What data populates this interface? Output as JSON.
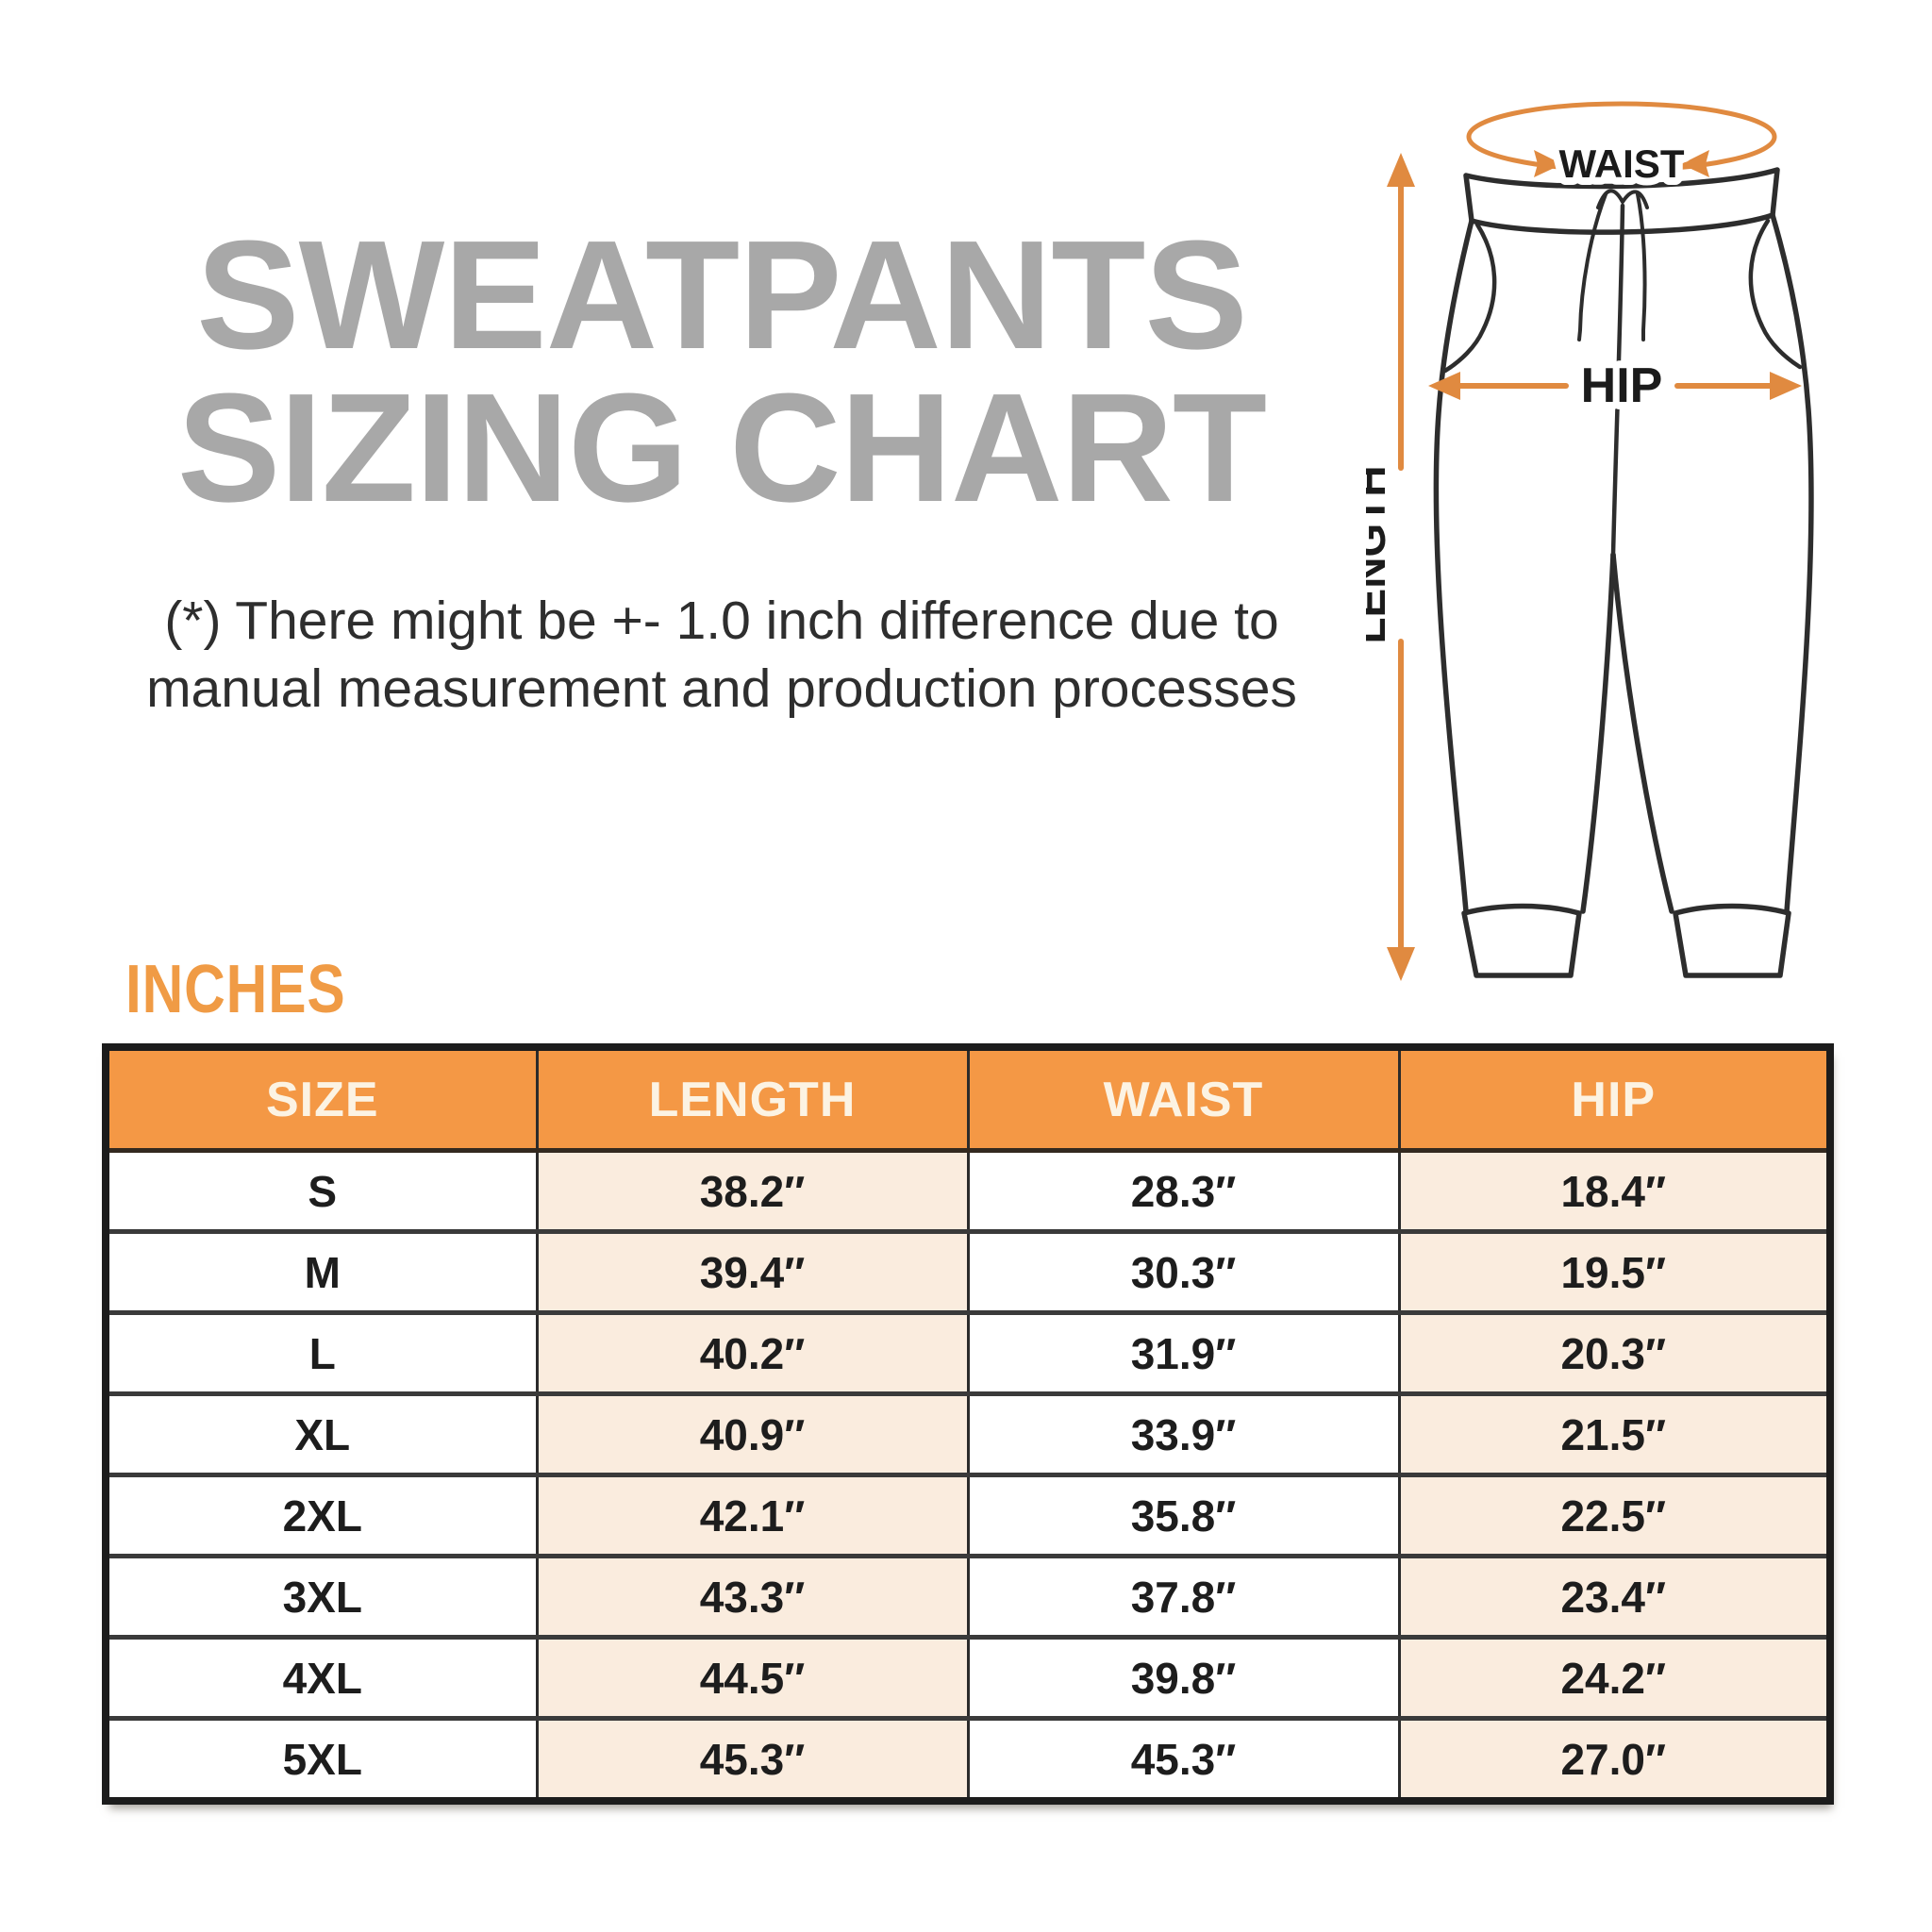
{
  "title": {
    "line1": "SWEATPANTS",
    "line2": "SIZING CHART"
  },
  "disclaimer": {
    "line1": "(*) There might be +- 1.0 inch difference due to",
    "line2": "manual measurement and production processes"
  },
  "units_label": "INCHES",
  "diagram": {
    "waist_label": "WAIST",
    "hip_label": "HIP",
    "length_label": "LENGTH"
  },
  "table": {
    "columns": [
      "SIZE",
      "LENGTH",
      "WAIST",
      "HIP"
    ],
    "rows": [
      {
        "size": "S",
        "length": "38.2″",
        "waist": "28.3″",
        "hip": "18.4″"
      },
      {
        "size": "M",
        "length": "39.4″",
        "waist": "30.3″",
        "hip": "19.5″"
      },
      {
        "size": "L",
        "length": "40.2″",
        "waist": "31.9″",
        "hip": "20.3″"
      },
      {
        "size": "XL",
        "length": "40.9″",
        "waist": "33.9″",
        "hip": "21.5″"
      },
      {
        "size": "2XL",
        "length": "42.1″",
        "waist": "35.8″",
        "hip": "22.5″"
      },
      {
        "size": "3XL",
        "length": "43.3″",
        "waist": "37.8″",
        "hip": "23.4″"
      },
      {
        "size": "4XL",
        "length": "44.5″",
        "waist": "39.8″",
        "hip": "24.2″"
      },
      {
        "size": "5XL",
        "length": "45.3″",
        "waist": "45.3″",
        "hip": "27.0″"
      }
    ]
  },
  "colors": {
    "accent_orange": "#F49845",
    "arrow_orange": "#E08A40",
    "title_gray": "#A8A8A8",
    "peach": "#FAECDE",
    "header_text": "#FCF3E3",
    "line_dark": "#2D2D2D"
  },
  "chart_data": {
    "type": "table",
    "title": "SWEATPANTS SIZING CHART",
    "units": "inches",
    "columns": [
      "SIZE",
      "LENGTH",
      "WAIST",
      "HIP"
    ],
    "rows": [
      [
        "S",
        38.2,
        28.3,
        18.4
      ],
      [
        "M",
        39.4,
        30.3,
        19.5
      ],
      [
        "L",
        40.2,
        31.9,
        20.3
      ],
      [
        "XL",
        40.9,
        33.9,
        21.5
      ],
      [
        "2XL",
        42.1,
        35.8,
        22.5
      ],
      [
        "3XL",
        43.3,
        37.8,
        23.4
      ],
      [
        "4XL",
        44.5,
        39.8,
        24.2
      ],
      [
        "5XL",
        45.3,
        45.3,
        27.0
      ]
    ],
    "note": "(*) There might be +- 1.0 inch difference due to manual measurement and production processes"
  }
}
